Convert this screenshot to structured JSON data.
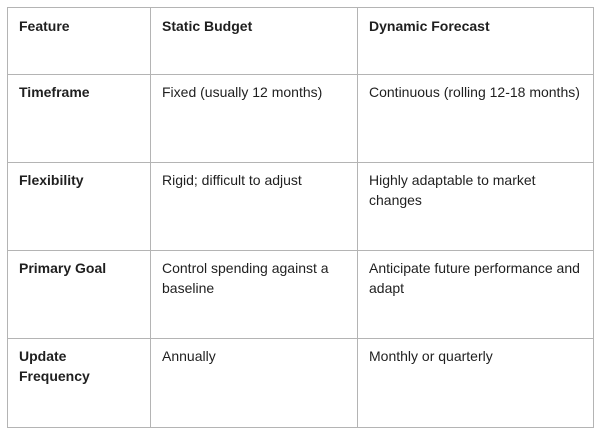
{
  "table": {
    "headers": [
      "Feature",
      "Static Budget",
      "Dynamic Forecast"
    ],
    "rows": [
      {
        "feature": "Timeframe",
        "static_budget": "Fixed (usually 12 months)",
        "dynamic_forecast": "Continuous (rolling 12-18 months)"
      },
      {
        "feature": "Flexibility",
        "static_budget": "Rigid; difficult to adjust",
        "dynamic_forecast": "Highly adaptable to market changes"
      },
      {
        "feature": "Primary Goal",
        "static_budget": "Control spending against a baseline",
        "dynamic_forecast": "Anticipate future performance and adapt"
      },
      {
        "feature": "Update Frequency",
        "static_budget": "Annually",
        "dynamic_forecast": "Monthly or quarterly"
      }
    ]
  }
}
